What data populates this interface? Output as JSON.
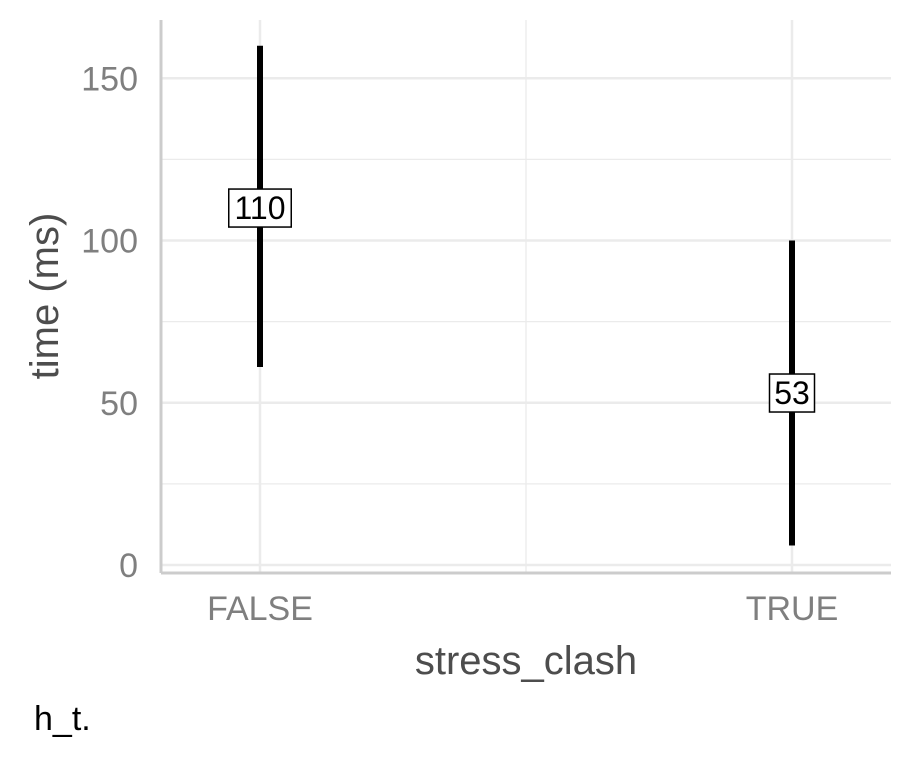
{
  "chart_data": {
    "type": "errorbar",
    "xlabel": "stress_clash",
    "ylabel": "time (ms)",
    "categories": [
      "FALSE",
      "TRUE"
    ],
    "points": [
      {
        "x": "FALSE",
        "y": 110,
        "ymin": 61,
        "ymax": 160,
        "label": "110"
      },
      {
        "x": "TRUE",
        "y": 53,
        "ymin": 6,
        "ymax": 100,
        "label": "53"
      }
    ],
    "ylim": [
      0,
      164
    ],
    "y_ticks": [
      0,
      50,
      100,
      150
    ],
    "grid": true,
    "colors": {
      "bar": "#000000",
      "grid": "#ebebeb",
      "axis": "#cccccc"
    }
  },
  "caption": "h_t."
}
